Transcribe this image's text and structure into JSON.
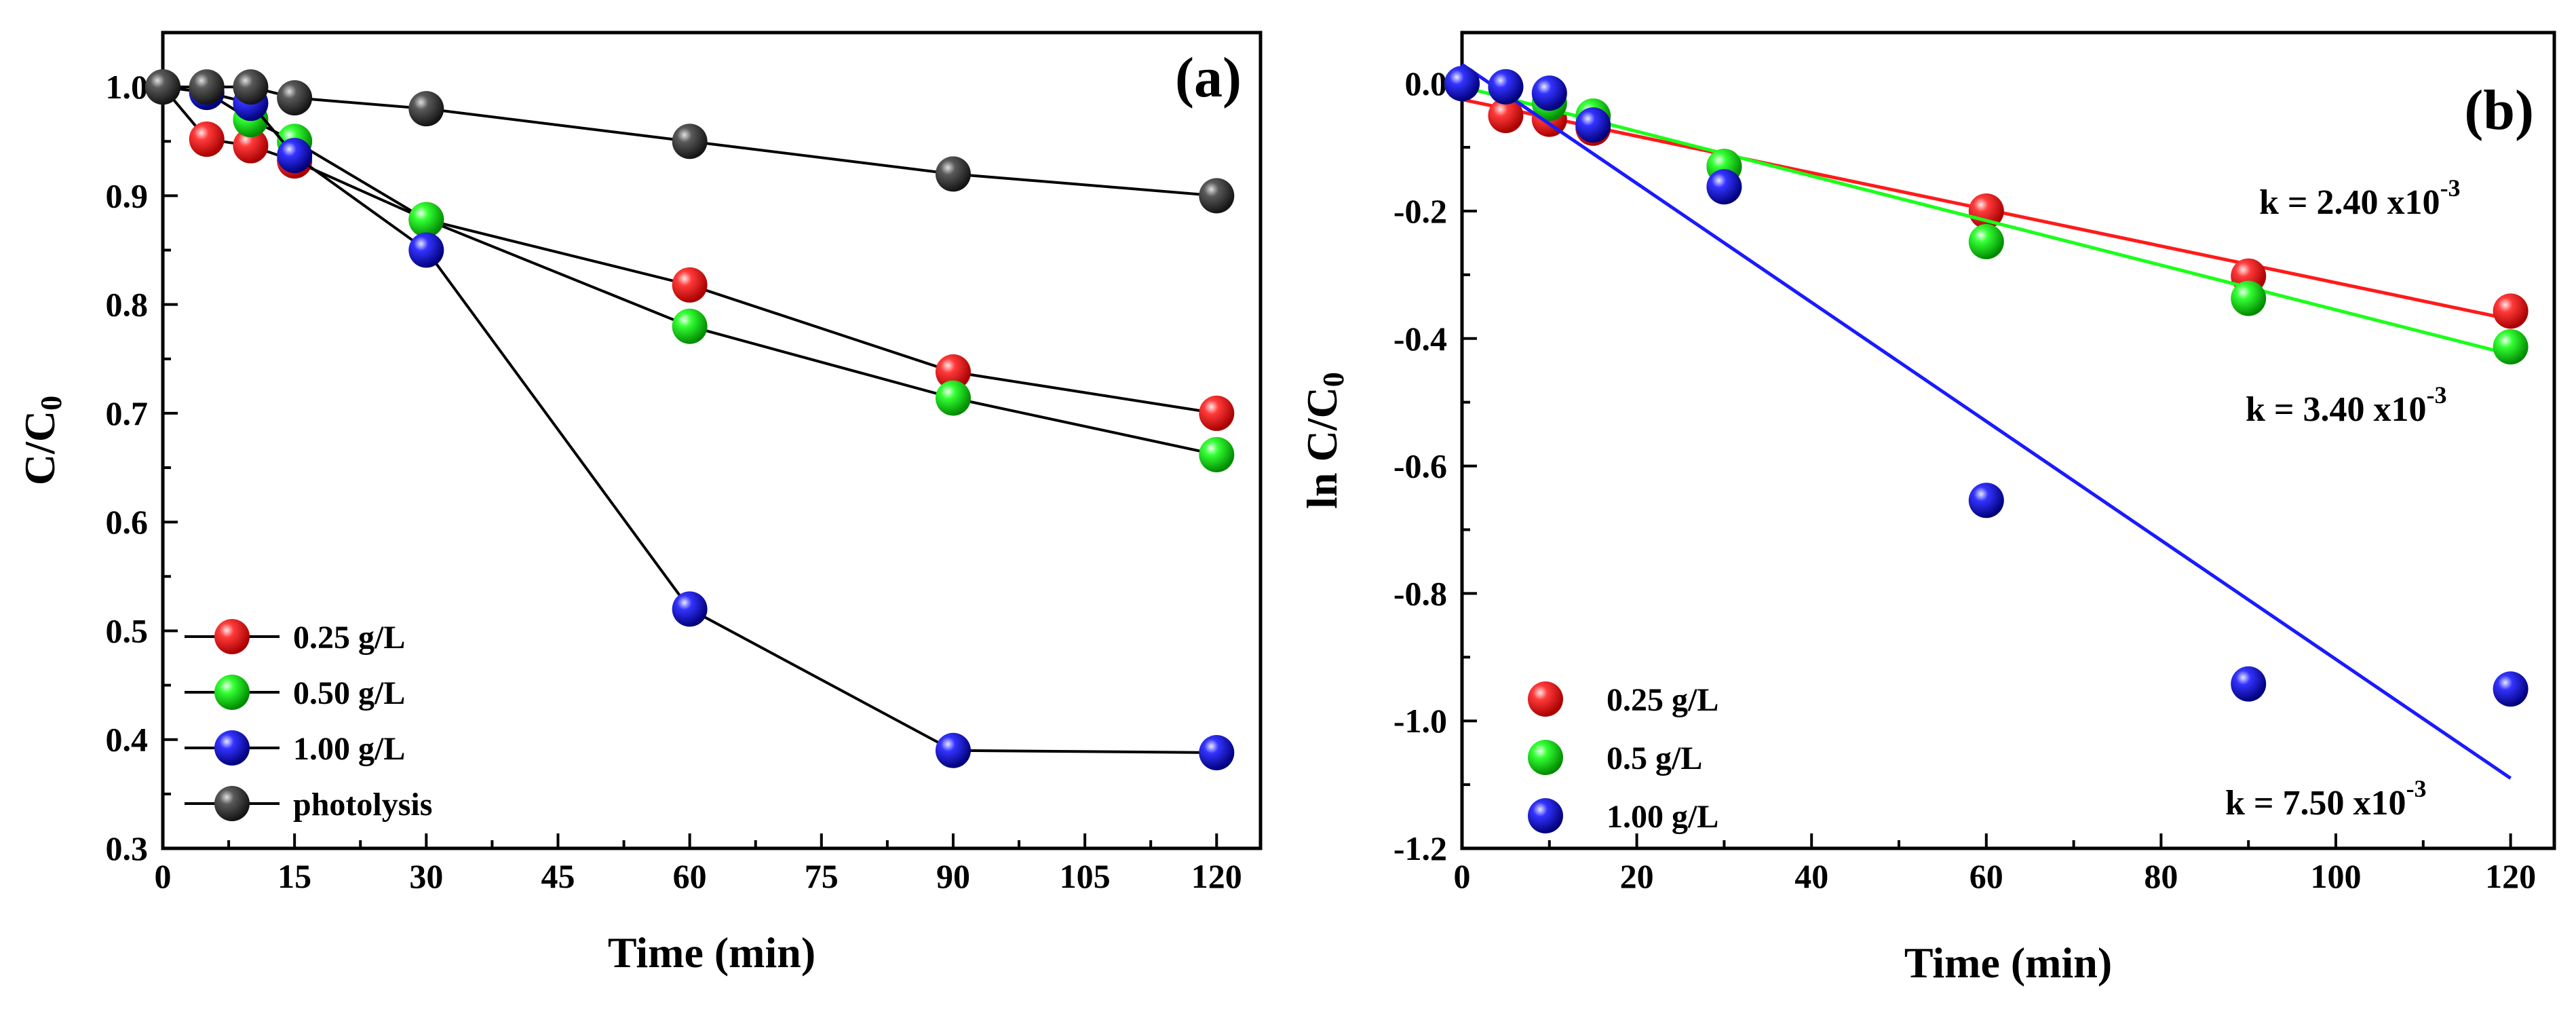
{
  "chart_data": [
    {
      "type": "line",
      "panel_label": "(a)",
      "xlabel": "Time (min)",
      "ylabel": "C/C",
      "ylabel_sub": "0",
      "xlim": [
        0,
        125
      ],
      "ylim": [
        0.3,
        1.05
      ],
      "x_ticks": [
        0,
        15,
        30,
        45,
        60,
        75,
        90,
        105,
        120
      ],
      "y_ticks": [
        0.3,
        0.4,
        0.5,
        0.6,
        0.7,
        0.8,
        0.9,
        1.0
      ],
      "x_tick_labels": [
        "0",
        "15",
        "30",
        "45",
        "60",
        "75",
        "90",
        "105",
        "120"
      ],
      "y_tick_labels": [
        "0.3",
        "0.4",
        "0.5",
        "0.6",
        "0.7",
        "0.8",
        "0.9",
        "1.0"
      ],
      "grid": false,
      "legend_position": "bottom-left",
      "series": [
        {
          "name": "0.25 g/L",
          "color": "#ff1a1a",
          "x": [
            0,
            5,
            10,
            15,
            30,
            60,
            90,
            120
          ],
          "y": [
            1.0,
            0.952,
            0.946,
            0.932,
            0.878,
            0.818,
            0.738,
            0.7
          ]
        },
        {
          "name": "0.50 g/L",
          "color": "#1aff1a",
          "x": [
            0,
            5,
            10,
            15,
            30,
            60,
            90,
            120
          ],
          "y": [
            1.0,
            0.995,
            0.97,
            0.95,
            0.878,
            0.78,
            0.714,
            0.662
          ]
        },
        {
          "name": "1.00 g/L",
          "color": "#1a1aff",
          "x": [
            0,
            5,
            10,
            15,
            30,
            60,
            90,
            120
          ],
          "y": [
            1.0,
            0.995,
            0.985,
            0.937,
            0.85,
            0.52,
            0.39,
            0.388
          ]
        },
        {
          "name": "photolysis",
          "color": "#3a3a3a",
          "x": [
            0,
            5,
            10,
            15,
            30,
            60,
            90,
            120
          ],
          "y": [
            1.0,
            1.0,
            1.0,
            0.99,
            0.98,
            0.95,
            0.92,
            0.9
          ]
        }
      ]
    },
    {
      "type": "scatter",
      "panel_label": "(b)",
      "xlabel": "Time (min)",
      "ylabel": "ln C/C",
      "ylabel_sub": "0",
      "xlim": [
        0,
        125
      ],
      "ylim": [
        -1.2,
        0.08
      ],
      "x_ticks": [
        0,
        20,
        40,
        60,
        80,
        100,
        120
      ],
      "y_ticks": [
        -1.2,
        -1.0,
        -0.8,
        -0.6,
        -0.4,
        -0.2,
        0.0
      ],
      "x_tick_labels": [
        "0",
        "20",
        "40",
        "60",
        "80",
        "100",
        "120"
      ],
      "y_tick_labels": [
        "-1.2",
        "-1.0",
        "-0.8",
        "-0.6",
        "-0.4",
        "-0.2",
        "0.0"
      ],
      "grid": false,
      "legend_position": "bottom-left",
      "series": [
        {
          "name": "0.25 g/L",
          "color": "#ff1a1a",
          "x": [
            0,
            5,
            10,
            15,
            30,
            60,
            90,
            120
          ],
          "y": [
            0.0,
            -0.05,
            -0.056,
            -0.07,
            -0.13,
            -0.2,
            -0.302,
            -0.357
          ],
          "fit": {
            "x": [
              0,
              120
            ],
            "y": [
              -0.025,
              -0.37
            ]
          }
        },
        {
          "name": "0.5 g/L",
          "color": "#1aff1a",
          "x": [
            0,
            5,
            10,
            15,
            30,
            60,
            90,
            120
          ],
          "y": [
            0.0,
            -0.005,
            -0.031,
            -0.051,
            -0.13,
            -0.248,
            -0.337,
            -0.413
          ],
          "fit": {
            "x": [
              0,
              120
            ],
            "y": [
              -0.005,
              -0.425
            ]
          }
        },
        {
          "name": "1.00 g/L",
          "color": "#1a1aff",
          "x": [
            0,
            5,
            10,
            15,
            30,
            60,
            90,
            120
          ],
          "y": [
            0.0,
            -0.005,
            -0.015,
            -0.065,
            -0.162,
            -0.654,
            -0.942,
            -0.95
          ],
          "fit": {
            "x": [
              0,
              120
            ],
            "y": [
              0.03,
              -1.09
            ]
          }
        }
      ],
      "annotations": [
        {
          "text": "k = 2.40 x10",
          "sup": "-3",
          "color": "#e8141c"
        },
        {
          "text": "k = 3.40 x10",
          "sup": "-3",
          "color": "#14c814"
        },
        {
          "text": "k = 7.50 x10",
          "sup": "-3",
          "color": "#1414c8"
        }
      ]
    }
  ]
}
